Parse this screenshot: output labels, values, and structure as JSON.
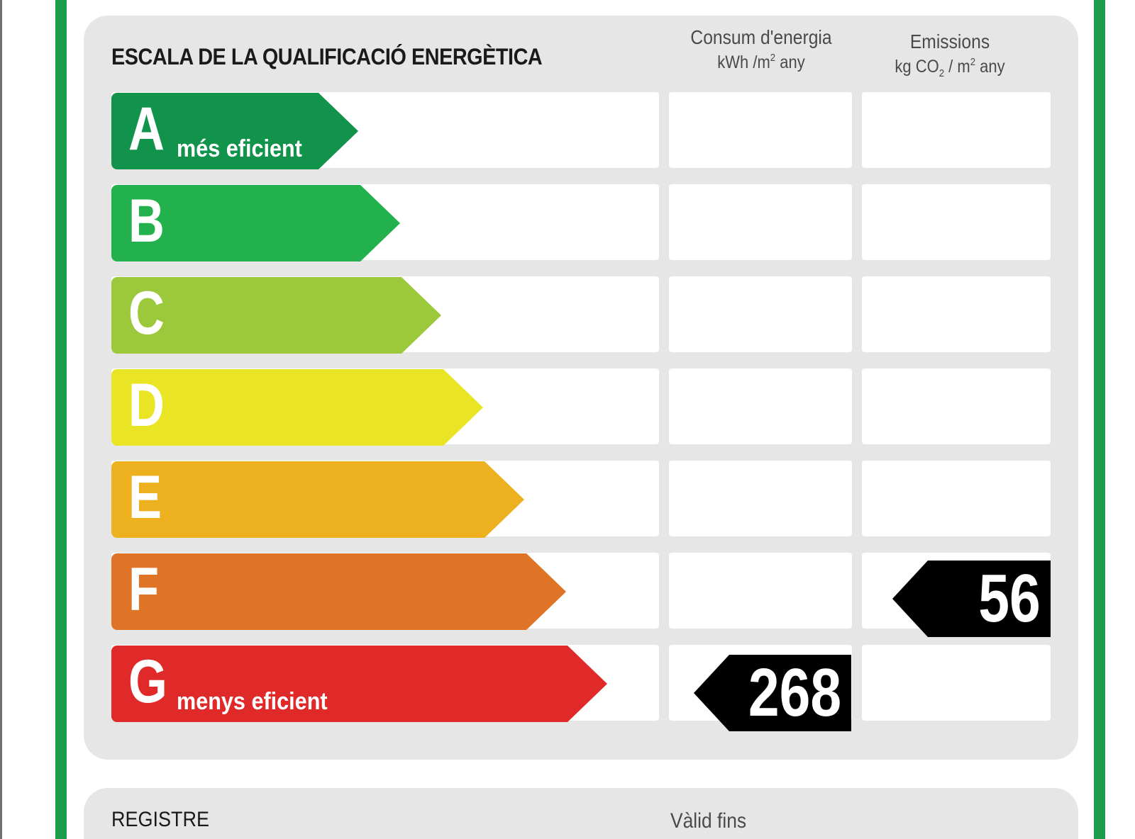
{
  "title": "ESCALA DE LA QUALIFICACIÓ ENERGÈTICA",
  "columns": {
    "energy": {
      "label": "Consum d'energia",
      "unit_pre": "kWh /m",
      "unit_sup": "2",
      "unit_post": " any"
    },
    "emissions": {
      "label": "Emissions",
      "unit_pre": "kg CO",
      "unit_sub": "2",
      "unit_mid": " / m",
      "unit_sup": "2",
      "unit_post": " any"
    }
  },
  "classes": [
    {
      "letter": "A",
      "caption": "més eficient",
      "color": "#12934b"
    },
    {
      "letter": "B",
      "caption": "",
      "color": "#22b14c"
    },
    {
      "letter": "C",
      "caption": "",
      "color": "#9cc83c"
    },
    {
      "letter": "D",
      "caption": "",
      "color": "#e9e524"
    },
    {
      "letter": "E",
      "caption": "",
      "color": "#edb01f"
    },
    {
      "letter": "F",
      "caption": "",
      "color": "#df7426"
    },
    {
      "letter": "G",
      "caption": "menys eficient",
      "color": "#e02a29"
    }
  ],
  "ratings": {
    "energy": {
      "value": "268",
      "class": "G"
    },
    "emissions": {
      "value": "56",
      "class": "F"
    }
  },
  "footer": {
    "registre_label": "REGISTRE",
    "valid_label": "Vàlid fins"
  }
}
